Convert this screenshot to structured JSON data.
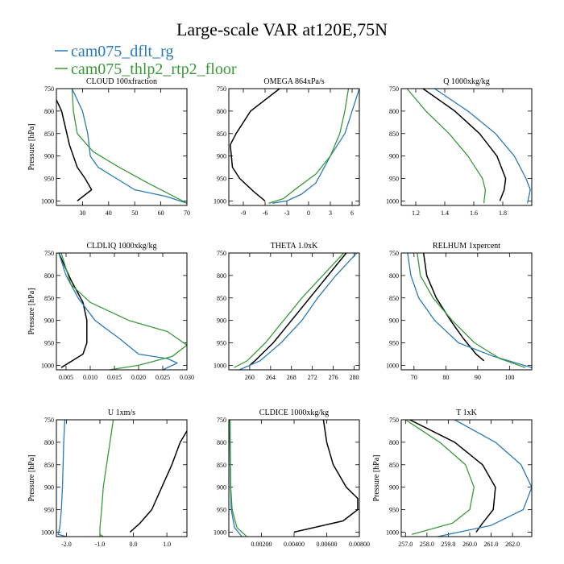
{
  "figure": {
    "title": "Large-scale VAR at120E,75N",
    "legend": [
      {
        "label": "cam075_dflt_rg",
        "color": "#2a7ab8"
      },
      {
        "label": "cam075_thlp2_rtp2_floor",
        "color": "#3a9a3a"
      }
    ],
    "ref_color": "#000000"
  },
  "chart_data": [
    {
      "type": "line",
      "title": "CLOUD  100xfraction",
      "ylabel": "Pressure [hPa]",
      "xlim": [
        20,
        70
      ],
      "ylim": [
        1010,
        750
      ],
      "xticks": [
        30,
        40,
        50,
        60,
        70
      ],
      "xtick_labels": [
        "30",
        "40",
        "50",
        "60",
        "70"
      ],
      "yticks": [
        750,
        800,
        850,
        900,
        950,
        1000
      ],
      "ytick_labels": [
        "750",
        "800",
        "850",
        "900",
        "950",
        "1000"
      ],
      "series": [
        {
          "name": "",
          "color": "#000000",
          "x": [
            28,
            33.5,
            31,
            28,
            25,
            22,
            20
          ],
          "y": [
            1000,
            975,
            950,
            925,
            875,
            800,
            775
          ]
        },
        {
          "name": "cam075_dflt_rg",
          "color": "#2a7ab8",
          "x": [
            26,
            30,
            32,
            33,
            36,
            50,
            62,
            70
          ],
          "y": [
            750,
            800,
            850,
            900,
            925,
            975,
            990,
            1005
          ]
        },
        {
          "name": "cam075_thlp2_rtp2_floor",
          "color": "#3a9a3a",
          "x": [
            26,
            26.5,
            28,
            34,
            44,
            55,
            65,
            70
          ],
          "y": [
            750,
            800,
            850,
            890,
            925,
            960,
            990,
            1005
          ]
        }
      ]
    },
    {
      "type": "line",
      "title": "OMEGA  864xPa/s",
      "ylabel": "",
      "xlim": [
        -11,
        7
      ],
      "ylim": [
        1010,
        750
      ],
      "xticks": [
        -9,
        -6,
        -3,
        0,
        3,
        6
      ],
      "xtick_labels": [
        "-9",
        "-6",
        "-3",
        "0",
        "3",
        "6"
      ],
      "yticks": [
        750,
        800,
        850,
        900,
        950,
        1000
      ],
      "ytick_labels": [
        "750",
        "800",
        "850",
        "900",
        "950",
        "1000"
      ],
      "series": [
        {
          "name": "",
          "color": "#000000",
          "x": [
            -4,
            -8,
            -10,
            -10.8,
            -10.5,
            -9.5,
            -7.5,
            -6
          ],
          "y": [
            750,
            800,
            850,
            875,
            925,
            950,
            980,
            1000
          ]
        },
        {
          "name": "cam075_dflt_rg",
          "color": "#2a7ab8",
          "x": [
            7,
            6,
            5,
            3,
            2,
            1,
            -1,
            -3,
            -5
          ],
          "y": [
            750,
            800,
            850,
            900,
            930,
            960,
            985,
            1000,
            1005
          ]
        },
        {
          "name": "cam075_thlp2_rtp2_floor",
          "color": "#3a9a3a",
          "x": [
            5.5,
            5,
            4.3,
            3,
            1,
            -1.5,
            -3.5,
            -5.5
          ],
          "y": [
            750,
            800,
            850,
            900,
            940,
            970,
            995,
            1005
          ]
        }
      ]
    },
    {
      "type": "line",
      "title": "Q  1000xkg/kg",
      "ylabel": "",
      "xlim": [
        1.1,
        2.0
      ],
      "ylim": [
        1010,
        750
      ],
      "xticks": [
        1.2,
        1.4,
        1.6,
        1.8
      ],
      "xtick_labels": [
        "1.2",
        "1.4",
        "1.6",
        "1.8"
      ],
      "yticks": [
        750,
        800,
        850,
        900,
        950,
        1000
      ],
      "ytick_labels": [
        "750",
        "800",
        "850",
        "900",
        "950",
        "1000"
      ],
      "series": [
        {
          "name": "",
          "color": "#000000",
          "x": [
            1.25,
            1.47,
            1.64,
            1.76,
            1.82,
            1.81,
            1.78
          ],
          "y": [
            750,
            800,
            850,
            900,
            950,
            975,
            1000
          ]
        },
        {
          "name": "cam075_dflt_rg",
          "color": "#2a7ab8",
          "x": [
            1.33,
            1.56,
            1.75,
            1.88,
            1.96,
            1.99,
            1.97
          ],
          "y": [
            750,
            800,
            850,
            900,
            950,
            975,
            1005
          ]
        },
        {
          "name": "cam075_thlp2_rtp2_floor",
          "color": "#3a9a3a",
          "x": [
            1.14,
            1.27,
            1.43,
            1.56,
            1.66,
            1.68,
            1.67
          ],
          "y": [
            750,
            800,
            850,
            900,
            950,
            975,
            1005
          ]
        }
      ]
    },
    {
      "type": "line",
      "title": "CLDLIQ  1000xkg/kg",
      "ylabel": "Pressure [hPa]",
      "xlim": [
        0.003,
        0.03
      ],
      "ylim": [
        1010,
        750
      ],
      "xticks": [
        0.005,
        0.01,
        0.015,
        0.02,
        0.025,
        0.03
      ],
      "xtick_labels": [
        "0.005",
        "0.010",
        "0.015",
        "0.020",
        "0.025",
        "0.030"
      ],
      "yticks": [
        750,
        800,
        850,
        900,
        950,
        1000
      ],
      "ytick_labels": [
        "750",
        "800",
        "850",
        "900",
        "950",
        "1000"
      ],
      "series": [
        {
          "name": "",
          "color": "#000000",
          "x": [
            0.0035,
            0.006,
            0.0085,
            0.0093,
            0.0093,
            0.0085,
            0.004
          ],
          "y": [
            750,
            810,
            860,
            900,
            950,
            975,
            1005
          ]
        },
        {
          "name": "cam075_dflt_rg",
          "color": "#2a7ab8",
          "x": [
            0.0035,
            0.005,
            0.0075,
            0.011,
            0.016,
            0.02,
            0.026,
            0.028,
            0.025
          ],
          "y": [
            750,
            800,
            850,
            900,
            940,
            975,
            985,
            995,
            1010
          ]
        },
        {
          "name": "cam075_thlp2_rtp2_floor",
          "color": "#3a9a3a",
          "x": [
            0.004,
            0.006,
            0.01,
            0.018,
            0.026,
            0.03,
            0.027,
            0.02,
            0.014
          ],
          "y": [
            750,
            820,
            860,
            900,
            925,
            955,
            980,
            1000,
            1010
          ]
        }
      ]
    },
    {
      "type": "line",
      "title": "THETA  1.0xK",
      "ylabel": "",
      "xlim": [
        256,
        281
      ],
      "ylim": [
        1010,
        750
      ],
      "xticks": [
        260,
        264,
        268,
        272,
        276,
        280
      ],
      "xtick_labels": [
        "260",
        "264",
        "268",
        "272",
        "276",
        "280"
      ],
      "yticks": [
        750,
        800,
        850,
        900,
        950,
        1000
      ],
      "ytick_labels": [
        "750",
        "800",
        "850",
        "900",
        "950",
        "1000"
      ],
      "series": [
        {
          "name": "",
          "color": "#000000",
          "x": [
            278.5,
            275,
            271.5,
            268,
            264.5,
            261,
            260
          ],
          "y": [
            750,
            800,
            850,
            900,
            950,
            990,
            1000
          ]
        },
        {
          "name": "cam075_dflt_rg",
          "color": "#2a7ab8",
          "x": [
            280.5,
            276.5,
            273,
            270,
            266,
            262,
            258
          ],
          "y": [
            750,
            800,
            850,
            900,
            950,
            990,
            1010
          ]
        },
        {
          "name": "cam075_thlp2_rtp2_floor",
          "color": "#3a9a3a",
          "x": [
            278,
            274,
            270,
            266.5,
            263,
            259.5,
            257
          ],
          "y": [
            750,
            800,
            850,
            900,
            950,
            990,
            1005
          ]
        }
      ]
    },
    {
      "type": "line",
      "title": "RELHUM  1xpercent",
      "ylabel": "",
      "xlim": [
        66,
        107
      ],
      "ylim": [
        1010,
        750
      ],
      "xticks": [
        70,
        80,
        90,
        100
      ],
      "xtick_labels": [
        "70",
        "80",
        "90",
        "100"
      ],
      "yticks": [
        750,
        800,
        850,
        900,
        950,
        1000
      ],
      "ytick_labels": [
        "750",
        "800",
        "850",
        "900",
        "950",
        "1000"
      ],
      "series": [
        {
          "name": "",
          "color": "#000000",
          "x": [
            73,
            74,
            77,
            81.5,
            85.5,
            89.5,
            92
          ],
          "y": [
            750,
            800,
            850,
            900,
            940,
            975,
            990
          ]
        },
        {
          "name": "cam075_dflt_rg",
          "color": "#2a7ab8",
          "x": [
            68,
            69,
            71.5,
            76.5,
            84,
            95,
            107
          ],
          "y": [
            750,
            800,
            850,
            900,
            950,
            980,
            1005
          ]
        },
        {
          "name": "cam075_thlp2_rtp2_floor",
          "color": "#3a9a3a",
          "x": [
            71,
            72,
            76,
            82,
            89,
            97,
            105
          ],
          "y": [
            750,
            800,
            850,
            900,
            950,
            985,
            1005
          ]
        }
      ]
    },
    {
      "type": "line",
      "title": "U  1xm/s",
      "ylabel": "Pressure [hPa]",
      "xlim": [
        -2.3,
        1.6
      ],
      "ylim": [
        1010,
        750
      ],
      "xticks": [
        -2.0,
        -1.0,
        0.0,
        1.0
      ],
      "xtick_labels": [
        "-2.0",
        "-1.0",
        "0.0",
        "1.0"
      ],
      "yticks": [
        750,
        800,
        850,
        900,
        950,
        1000
      ],
      "ytick_labels": [
        "750",
        "800",
        "850",
        "900",
        "950",
        "1000"
      ],
      "series": [
        {
          "name": "",
          "color": "#000000",
          "x": [
            1.6,
            1.4,
            1.15,
            0.85,
            0.55,
            0.2,
            -0.1
          ],
          "y": [
            775,
            800,
            850,
            900,
            950,
            980,
            1000
          ]
        },
        {
          "name": "cam075_dflt_rg",
          "color": "#2a7ab8",
          "x": [
            -2.05,
            -2.08,
            -2.1,
            -2.12,
            -2.15,
            -2.2,
            -2.25,
            -2.0
          ],
          "y": [
            750,
            800,
            850,
            900,
            950,
            990,
            1005,
            1010
          ]
        },
        {
          "name": "cam075_thlp2_rtp2_floor",
          "color": "#3a9a3a",
          "x": [
            -0.6,
            -0.7,
            -0.8,
            -0.9,
            -0.95,
            -1.0,
            -1.0,
            -0.9
          ],
          "y": [
            750,
            800,
            850,
            900,
            950,
            990,
            1005,
            1010
          ]
        }
      ]
    },
    {
      "type": "line",
      "title": "CLDICE  1000xkg/kg",
      "ylabel": "",
      "xlim": [
        0,
        0.008
      ],
      "ylim": [
        1010,
        750
      ],
      "xticks": [
        0.002,
        0.004,
        0.006,
        0.008
      ],
      "xtick_labels": [
        "0.00200",
        "0.00400",
        "0.00600",
        "0.00800"
      ],
      "yticks": [
        750,
        800,
        850,
        900,
        950,
        1000
      ],
      "ytick_labels": [
        "750",
        "800",
        "850",
        "900",
        "950",
        "1000"
      ],
      "series": [
        {
          "name": "",
          "color": "#000000",
          "x": [
            0.0058,
            0.006,
            0.0064,
            0.0072,
            0.0079,
            0.0079,
            0.007,
            0.004
          ],
          "y": [
            750,
            800,
            850,
            900,
            925,
            950,
            975,
            1000
          ]
        },
        {
          "name": "cam075_dflt_rg",
          "color": "#2a7ab8",
          "x": [
            5e-05,
            6e-05,
            8e-05,
            0.0001,
            0.00015,
            0.00035,
            0.0008
          ],
          "y": [
            750,
            800,
            850,
            900,
            950,
            990,
            1010
          ]
        },
        {
          "name": "cam075_thlp2_rtp2_floor",
          "color": "#3a9a3a",
          "x": [
            8e-05,
            9e-05,
            0.0001,
            0.00012,
            0.0002,
            0.0005,
            0.0011
          ],
          "y": [
            750,
            800,
            850,
            900,
            950,
            990,
            1010
          ]
        }
      ]
    },
    {
      "type": "line",
      "title": "T  1xK",
      "ylabel": "Pressure [hPa]",
      "xlim": [
        256.8,
        262.9
      ],
      "ylim": [
        1010,
        750
      ],
      "xticks": [
        257,
        258,
        259,
        260,
        261,
        262
      ],
      "xtick_labels": [
        "257.0",
        "258.0",
        "259.0",
        "260.0",
        "261.0",
        "262.0"
      ],
      "yticks": [
        750,
        800,
        850,
        900,
        950,
        1000
      ],
      "ytick_labels": [
        "750",
        "800",
        "850",
        "900",
        "950",
        "1000"
      ],
      "series": [
        {
          "name": "",
          "color": "#000000",
          "x": [
            257.2,
            259.3,
            260.6,
            261.2,
            261.1,
            260.6,
            260.3
          ],
          "y": [
            750,
            800,
            850,
            900,
            950,
            980,
            1000
          ]
        },
        {
          "name": "cam075_dflt_rg",
          "color": "#2a7ab8",
          "x": [
            259.3,
            261.2,
            262.4,
            262.9,
            262.5,
            261.0,
            258.5
          ],
          "y": [
            750,
            800,
            850,
            900,
            950,
            985,
            1010
          ]
        },
        {
          "name": "cam075_thlp2_rtp2_floor",
          "color": "#3a9a3a",
          "x": [
            257.0,
            258.6,
            259.8,
            260.2,
            260.0,
            259.2,
            257.3
          ],
          "y": [
            750,
            800,
            850,
            900,
            950,
            980,
            1005
          ]
        }
      ]
    }
  ]
}
